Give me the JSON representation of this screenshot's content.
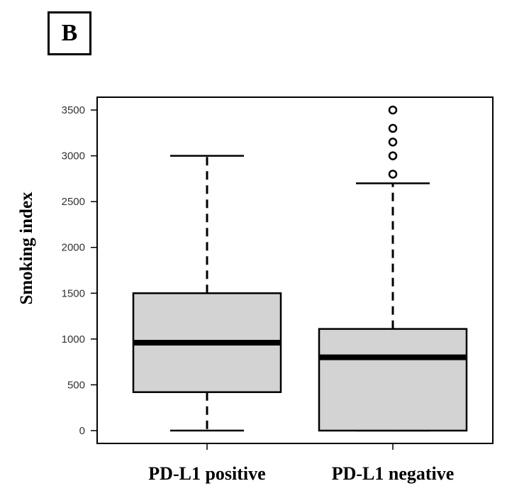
{
  "panel_label": "B",
  "chart_data": {
    "type": "boxplot",
    "title": "",
    "xlabel": "",
    "ylabel": "Smoking index",
    "ylim": [
      -140,
      3640
    ],
    "yticks": [
      0,
      500,
      1000,
      1500,
      2000,
      2500,
      3000,
      3500
    ],
    "categories": [
      "PD-L1 positive",
      "PD-L1 negative"
    ],
    "boxes": [
      {
        "whisker_low": 0,
        "q1": 420,
        "median": 960,
        "q3": 1500,
        "whisker_high": 3000,
        "outliers": []
      },
      {
        "whisker_low": 0,
        "q1": 0,
        "median": 800,
        "q3": 1110,
        "whisker_high": 2700,
        "outliers": [
          2800,
          3000,
          3150,
          3300,
          3500
        ]
      }
    ],
    "box_fill": "#d3d3d3",
    "grid": false
  }
}
